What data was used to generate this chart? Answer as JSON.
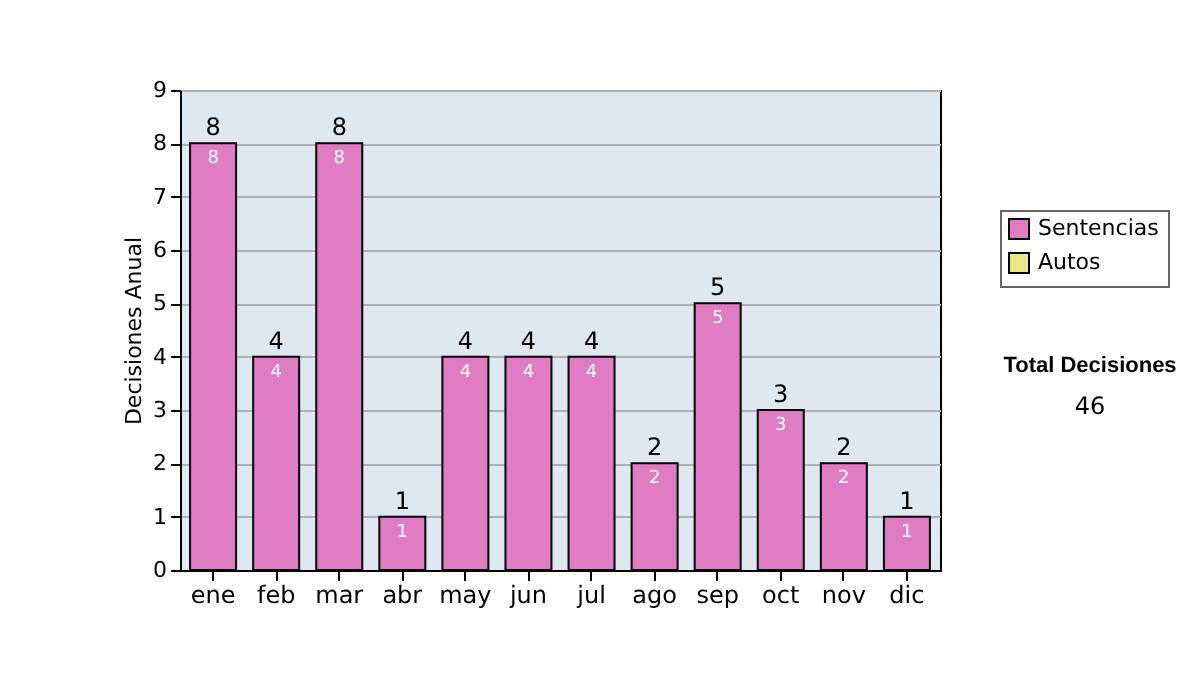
{
  "chart_data": {
    "type": "bar",
    "ylabel": "Decisiones Anual",
    "categories": [
      "ene",
      "feb",
      "mar",
      "abr",
      "may",
      "jun",
      "jul",
      "ago",
      "sep",
      "oct",
      "nov",
      "dic"
    ],
    "series": [
      {
        "name": "Sentencias",
        "color": "#e07cc4",
        "values": [
          8,
          4,
          8,
          1,
          4,
          4,
          4,
          2,
          5,
          3,
          2,
          1
        ],
        "value_labels": [
          "8",
          "4",
          "8",
          "1",
          "4",
          "4",
          "4",
          "2",
          "5",
          "3",
          "2",
          "1"
        ]
      },
      {
        "name": "Autos",
        "color": "#e8e888",
        "values": [
          null,
          null,
          null,
          null,
          null,
          null,
          null,
          null,
          null,
          null,
          null,
          null
        ]
      }
    ],
    "stacked": true,
    "ylim": [
      0,
      9
    ],
    "yticks": [
      0,
      1,
      2,
      3,
      4,
      5,
      6,
      7,
      8,
      9
    ],
    "grid": "y",
    "legend": "right",
    "totals": [
      "8",
      "4",
      "8",
      "1",
      "4",
      "4",
      "4",
      "2",
      "5",
      "3",
      "2",
      "1"
    ],
    "annotations": [
      "Total Decisiones",
      "46"
    ]
  }
}
